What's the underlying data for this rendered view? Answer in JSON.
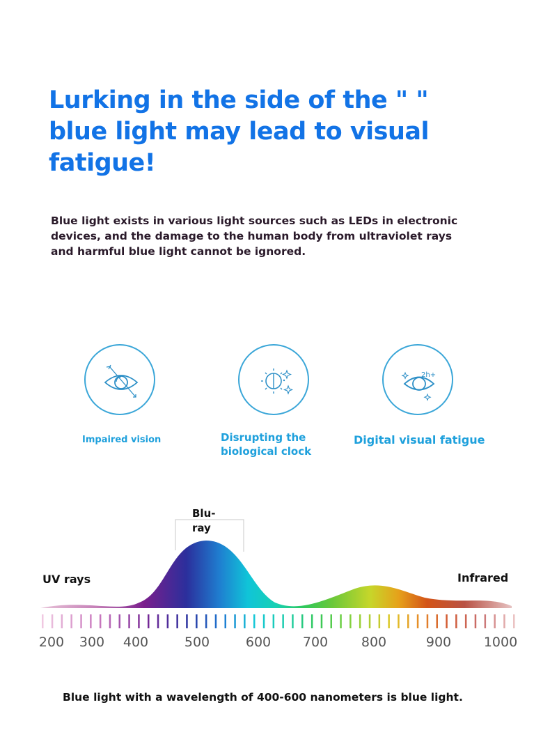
{
  "header": {
    "headline": "Lurking in the side of the \"    \" blue light may lead to visual fatigue!",
    "intro": "Blue light exists in various light sources such as LEDs in electronic devices, and the damage to the human body from ultraviolet rays and harmful blue light cannot be ignored."
  },
  "hazards": {
    "items": [
      {
        "label": "Impaired vision",
        "icon": "eye-arrow-icon"
      },
      {
        "label": "Disrupting the biological clock",
        "icon": "sun-moon-icon"
      },
      {
        "label": "Digital visual fatigue",
        "icon": "tired-eye-icon"
      }
    ]
  },
  "spectrum": {
    "peak_label": "Blu-ray",
    "left_label": "UV rays",
    "right_label": "Infrared",
    "ticks": [
      "200",
      "300",
      "400",
      "500",
      "600",
      "700",
      "800",
      "900",
      "1000"
    ]
  },
  "footer": {
    "caption": "Blue light with a wavelength of 400-600 nanometers is blue light."
  },
  "colors": {
    "headline": "#1273e6",
    "accent": "#1ea0dc",
    "ring": "#3aa6d8"
  }
}
